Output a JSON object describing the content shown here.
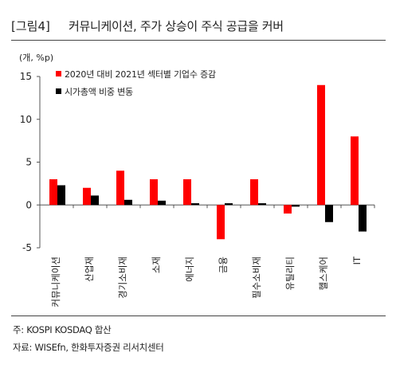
{
  "header": {
    "fig_tag": "[그림4]",
    "title": "커뮤니케이션, 주가 상승이 주식 공급을 커버"
  },
  "chart_data": {
    "type": "bar",
    "unit_label": "(개, %p)",
    "categories": [
      "커뮤니케이션",
      "산업재",
      "경기소비재",
      "소재",
      "에너지",
      "금융",
      "필수소비재",
      "유틸리티",
      "헬스케어",
      "IT"
    ],
    "series": [
      {
        "name": "2020년 대비 2021년 섹터별 기업수 증감",
        "color": "#ff0000",
        "values": [
          3,
          2,
          4,
          3,
          3,
          -4,
          3,
          -1,
          14,
          8
        ]
      },
      {
        "name": "시가총액 비중 변동",
        "color": "#000000",
        "values": [
          2.3,
          1.1,
          0.6,
          0.5,
          0.2,
          0.2,
          0.2,
          -0.2,
          -2.0,
          -3.1
        ]
      }
    ],
    "yticks": [
      15,
      10,
      5,
      0,
      -5
    ],
    "ylim": [
      -5,
      15
    ],
    "grid": false,
    "legend": "top-left"
  },
  "footer": {
    "note": "주: KOSPI KOSDAQ 합산",
    "source": "자료: WISEfn, 한화투자증권 리서치센터"
  }
}
